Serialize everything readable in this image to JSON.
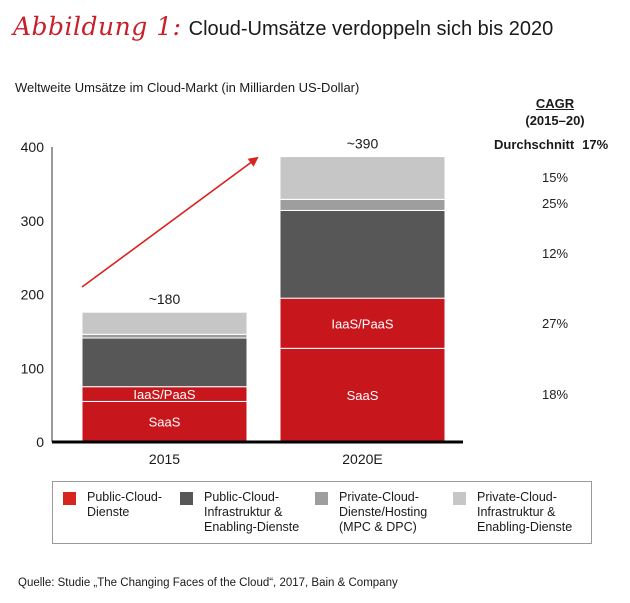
{
  "header": {
    "figure_label": "Abbildung 1:",
    "title": "Cloud-Umsätze verdoppeln sich bis 2020",
    "subtitle": "Weltweite Umsätze im Cloud-Markt (in Milliarden US-Dollar)"
  },
  "cagr": {
    "heading": "CAGR",
    "period": "(2015–20)",
    "average_label": "Durchschnitt",
    "average_value": "17%",
    "values": [
      {
        "segment": "Private-Cloud-Infrastruktur & Enabling-Dienste",
        "value": "15%"
      },
      {
        "segment": "Private-Cloud-Dienste/Hosting (MPC & DPC)",
        "value": "25%"
      },
      {
        "segment": "Public-Cloud-Infrastruktur & Enabling-Dienste",
        "value": "12%"
      },
      {
        "segment": "IaaS/PaaS",
        "value": "27%"
      },
      {
        "segment": "SaaS",
        "value": "18%"
      }
    ]
  },
  "legend": [
    {
      "label": "Public-Cloud-\nDienste",
      "color": "#c8161d"
    },
    {
      "label": "Public-Cloud-\nInfrastruktur &\nEnabling-Dienste",
      "color": "#575757"
    },
    {
      "label": "Private-Cloud-\nDienste/Hosting\n(MPC & DPC)",
      "color": "#9e9e9e"
    },
    {
      "label": "Private-Cloud-\nInfrastruktur &\nEnabling-Dienste",
      "color": "#c6c6c6"
    }
  ],
  "source": "Quelle: Studie „The Changing Faces of the Cloud“, 2017, Bain & Company",
  "chart_data": {
    "type": "bar",
    "stacked": true,
    "title": "Cloud-Umsätze verdoppeln sich bis 2020",
    "ylabel": "Weltweite Umsätze im Cloud-Markt (in Milliarden US-Dollar)",
    "xlabel": "",
    "categories": [
      "2015",
      "2020E"
    ],
    "ylim": [
      0,
      400
    ],
    "yticks": [
      0,
      100,
      200,
      300,
      400
    ],
    "grid": false,
    "legend_position": "bottom",
    "totals": [
      "~180",
      "~390"
    ],
    "series": [
      {
        "name": "SaaS",
        "group": "Public-Cloud-Dienste",
        "color": "#c8161d",
        "values": [
          55,
          127
        ],
        "label": "SaaS"
      },
      {
        "name": "IaaS/PaaS",
        "group": "Public-Cloud-Dienste",
        "color": "#c8161d",
        "values": [
          20,
          68
        ],
        "label": "IaaS/PaaS"
      },
      {
        "name": "Public-Cloud-Infrastruktur & Enabling-Dienste",
        "color": "#575757",
        "values": [
          66,
          119
        ],
        "label": ""
      },
      {
        "name": "Private-Cloud-Dienste/Hosting (MPC & DPC)",
        "color": "#9e9e9e",
        "values": [
          5,
          15
        ],
        "label": ""
      },
      {
        "name": "Private-Cloud-Infrastruktur & Enabling-Dienste",
        "color": "#c6c6c6",
        "values": [
          30,
          58
        ],
        "label": ""
      }
    ],
    "annotations": [
      {
        "type": "arrow",
        "description": "growth arrow from 2015 to 2020E",
        "color": "#d8241f"
      }
    ]
  }
}
